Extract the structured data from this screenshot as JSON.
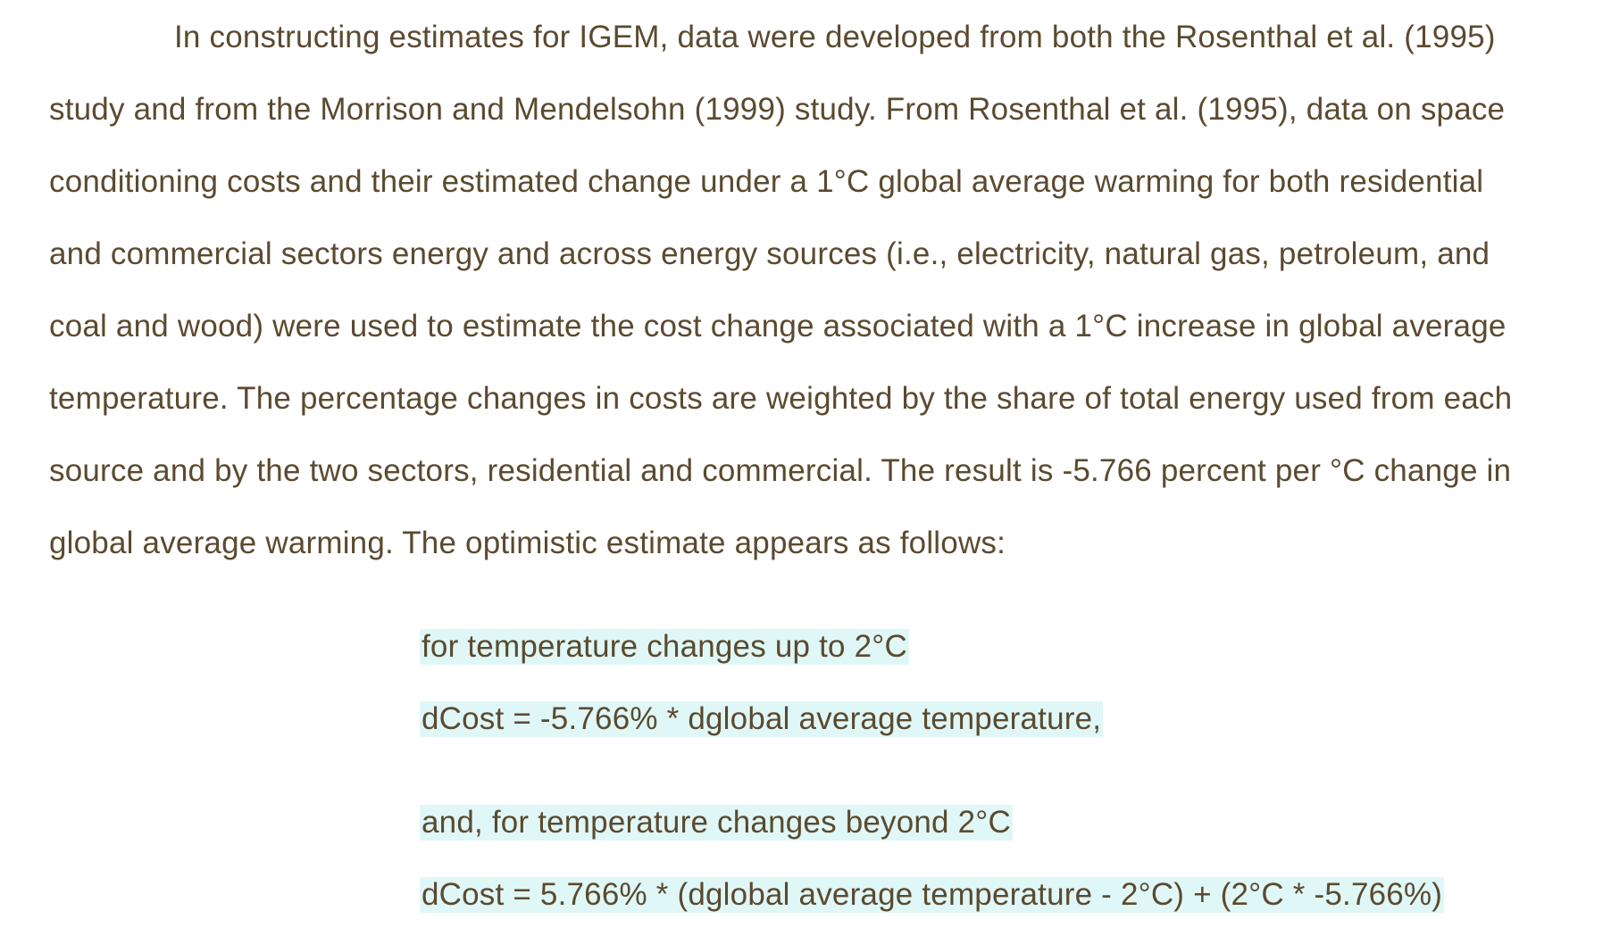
{
  "paragraph": {
    "lines": [
      "In constructing estimates for IGEM, data were developed from both the Rosenthal et al. (1995)",
      "study and from the Morrison and Mendelsohn (1999) study. From Rosenthal et al. (1995), data on space",
      "conditioning costs and their estimated change under a 1°C global average warming for both residential",
      "and commercial sectors energy and across energy sources (i.e., electricity, natural gas, petroleum, and",
      "coal and wood) were used to estimate the cost change associated with a 1°C increase in global average",
      "temperature. The percentage changes in costs are weighted by the share of total energy used from each",
      "source and by the two sectors, residential and commercial. The result is -5.766 percent per °C change in",
      "global average warming. The optimistic estimate appears as follows:"
    ]
  },
  "equations": {
    "cond1": "for temperature changes up to 2°C",
    "eq1": "dCost = -5.766% * dglobal average temperature,",
    "cond2": "and, for temperature changes beyond 2°C",
    "eq2": "dCost = 5.766% * (dglobal average temperature - 2°C) + (2°C * -5.766%)"
  },
  "colors": {
    "text": "#5b4a2f",
    "highlight": "#dff7f7"
  }
}
